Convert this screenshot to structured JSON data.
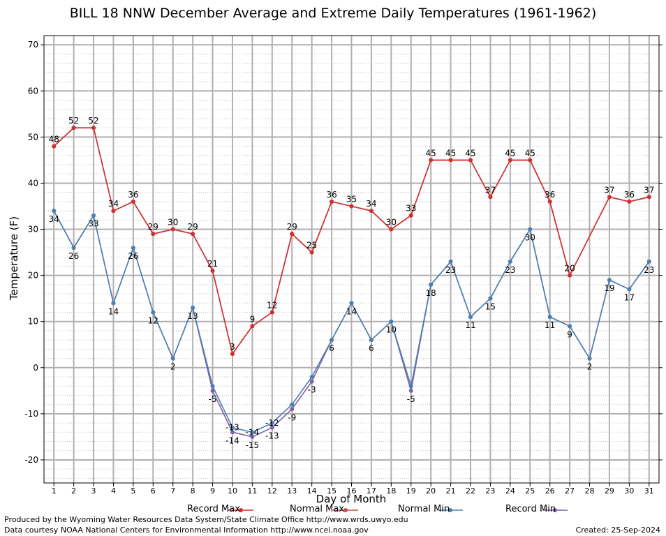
{
  "chart_data": {
    "type": "line",
    "title": "BILL 18 NNW December Average and Extreme Daily Temperatures (1961-1962)",
    "xlabel": "Day of Month",
    "ylabel": "Temperature (F)",
    "xlim": [
      0.5,
      31.5
    ],
    "ylim": [
      -25,
      72
    ],
    "yticks": [
      -20,
      -10,
      0,
      10,
      20,
      30,
      40,
      50,
      60,
      70
    ],
    "x": [
      1,
      2,
      3,
      4,
      5,
      6,
      7,
      8,
      9,
      10,
      11,
      12,
      13,
      14,
      15,
      16,
      17,
      18,
      19,
      20,
      21,
      22,
      23,
      24,
      25,
      26,
      27,
      28,
      29,
      30,
      31
    ],
    "grid": true,
    "legend_position": "bottom",
    "series": [
      {
        "name": "Record Max",
        "color": "#d03030",
        "values": [
          48,
          52,
          52,
          34,
          36,
          29,
          30,
          29,
          21,
          3,
          9,
          12,
          29,
          25,
          36,
          35,
          34,
          30,
          33,
          45,
          45,
          45,
          37,
          45,
          45,
          36,
          20,
          null,
          37,
          36,
          37
        ],
        "labels_shown": true
      },
      {
        "name": "Normal Max",
        "color": "#c05050",
        "values": [
          48,
          52,
          52,
          34,
          36,
          29,
          30,
          29,
          21,
          3,
          9,
          12,
          29,
          25,
          36,
          35,
          34,
          30,
          33,
          45,
          45,
          45,
          37,
          45,
          45,
          36,
          20,
          null,
          37,
          36,
          37
        ],
        "labels_shown": false
      },
      {
        "name": "Normal Min",
        "color": "#4a80b0",
        "values": [
          34,
          26,
          33,
          14,
          26,
          12,
          2,
          13,
          -4,
          -13,
          -14,
          -12,
          -8,
          -2,
          6,
          14,
          6,
          10,
          -4,
          18,
          23,
          11,
          15,
          23,
          30,
          11,
          9,
          2,
          19,
          17,
          23
        ],
        "labels_shown": false
      },
      {
        "name": "Record Min",
        "color": "#8060a8",
        "values": [
          34,
          26,
          33,
          14,
          26,
          12,
          2,
          13,
          -5,
          -14,
          -15,
          -13,
          -9,
          -3,
          6,
          14,
          6,
          10,
          -5,
          18,
          23,
          11,
          15,
          23,
          30,
          11,
          9,
          2,
          19,
          17,
          23
        ],
        "labels_shown": true
      }
    ],
    "annotations": {
      "max_labels": [
        "48",
        "52",
        "52",
        "34",
        "36",
        "29",
        "30",
        "29",
        "21",
        "3",
        "9",
        "12",
        "29",
        "25",
        "36",
        "35",
        "34",
        "30",
        "33",
        "45",
        "45",
        "45",
        "37",
        "45",
        "45",
        "36",
        "20",
        "",
        "37",
        "36",
        "37"
      ],
      "min_labels": [
        "34",
        "26",
        "33",
        "14",
        "26",
        "12",
        "2",
        "13",
        "-5",
        "-14",
        "-15",
        "-13",
        "-9",
        "-3",
        "6",
        "14",
        "6",
        "10",
        "-5",
        "18",
        "23",
        "11",
        "15",
        "23",
        "30",
        "11",
        "9",
        "2",
        "19",
        "17",
        "23"
      ],
      "extra_labels": [
        {
          "x": 10,
          "y": -13,
          "text": "-13"
        },
        {
          "x": 11,
          "y": -14,
          "text": "-14"
        },
        {
          "x": 12,
          "y": -12,
          "text": "-12"
        }
      ]
    }
  },
  "footer": {
    "produced_by": "Produced by the Wyoming Water Resources Data System/State Climate Office http://www.wrds.uwyo.edu",
    "data_courtesy": "Data courtesy NOAA National Centers for Environmental Information http://www.ncei.noaa.gov",
    "created": "Created: 25-Sep-2024"
  }
}
